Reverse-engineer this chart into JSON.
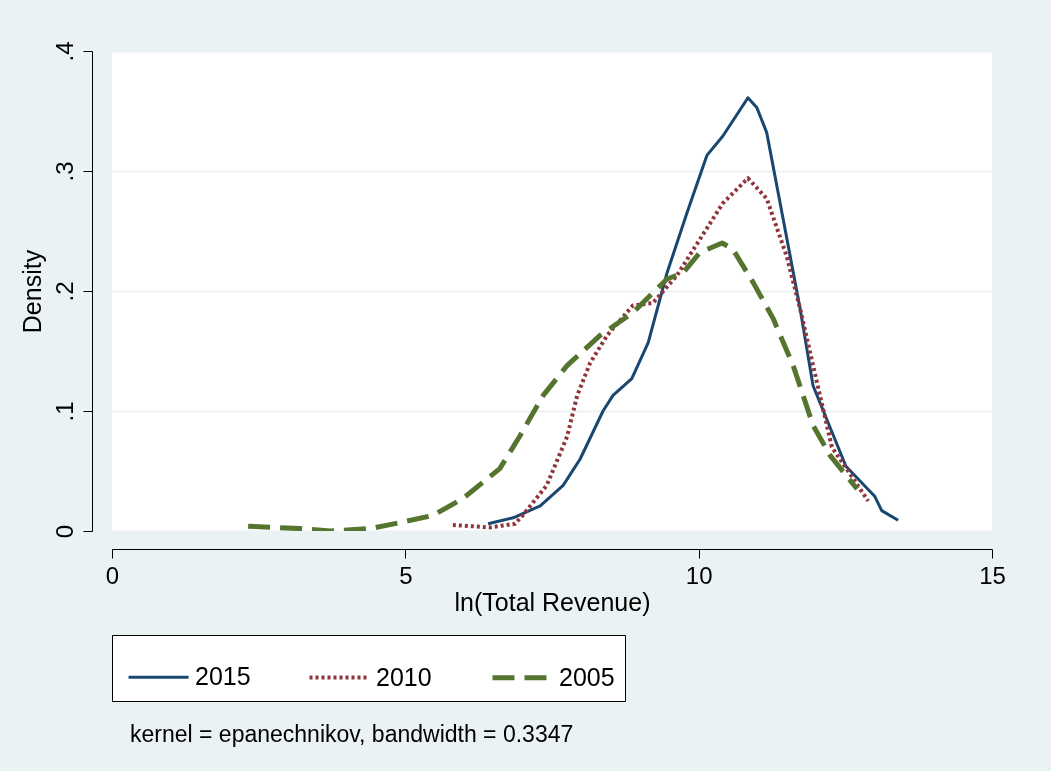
{
  "chart_data": {
    "type": "line",
    "xlabel": "ln(Total Revenue)",
    "ylabel": "Density",
    "xlim": [
      0,
      15
    ],
    "xticks": [
      0,
      5,
      10,
      15
    ],
    "ylim": [
      0,
      0.4
    ],
    "yticks": [
      0,
      {
        "value": 0.1,
        "label": ".1"
      },
      {
        "value": 0.2,
        "label": ".2"
      },
      {
        "value": 0.3,
        "label": ".3"
      },
      {
        "value": 0.4,
        "label": ".4"
      }
    ],
    "grid": "y",
    "legend": "bottom",
    "annotations": [
      "kernel = epanechnikov, bandwidth = 0.3347"
    ],
    "series": [
      {
        "name": "2015",
        "color": "#1a476f",
        "line_style": "solid",
        "x": [
          6.41,
          6.84,
          7.3,
          7.69,
          7.98,
          8.37,
          8.54,
          8.86,
          9.14,
          9.46,
          9.8,
          10.14,
          10.41,
          10.84,
          10.99,
          11.16,
          11.44,
          11.73,
          11.95,
          12.51,
          13.0,
          13.12,
          13.4
        ],
        "values": [
          0.006,
          0.011,
          0.021,
          0.038,
          0.06,
          0.1,
          0.113,
          0.127,
          0.157,
          0.215,
          0.265,
          0.313,
          0.329,
          0.361,
          0.353,
          0.332,
          0.26,
          0.185,
          0.121,
          0.054,
          0.029,
          0.017,
          0.009
        ]
      },
      {
        "name": "2010",
        "color": "#90353b",
        "line_style": "dotted",
        "x": [
          5.81,
          6.44,
          6.87,
          7.0,
          7.41,
          7.76,
          7.93,
          8.15,
          8.44,
          8.88,
          9.22,
          9.63,
          10.02,
          10.41,
          10.84,
          11.16,
          11.5,
          11.73,
          11.95,
          12.27,
          12.89
        ],
        "values": [
          0.005,
          0.003,
          0.006,
          0.013,
          0.038,
          0.079,
          0.113,
          0.14,
          0.163,
          0.188,
          0.19,
          0.213,
          0.243,
          0.273,
          0.294,
          0.277,
          0.229,
          0.185,
          0.138,
          0.07,
          0.025
        ]
      },
      {
        "name": "2005",
        "color": "#55752f",
        "line_style": "dashed",
        "x": [
          2.32,
          3.2,
          3.72,
          4.4,
          4.91,
          5.47,
          5.98,
          6.61,
          6.95,
          7.35,
          7.76,
          8.32,
          8.88,
          9.46,
          9.73,
          10.02,
          10.4,
          10.58,
          10.93,
          11.27,
          11.61,
          11.95,
          12.24,
          12.7
        ],
        "values": [
          0.004,
          0.002,
          0.0,
          0.002,
          0.007,
          0.013,
          0.027,
          0.052,
          0.079,
          0.113,
          0.138,
          0.163,
          0.182,
          0.21,
          0.215,
          0.232,
          0.24,
          0.235,
          0.207,
          0.177,
          0.138,
          0.088,
          0.063,
          0.035
        ]
      }
    ]
  }
}
